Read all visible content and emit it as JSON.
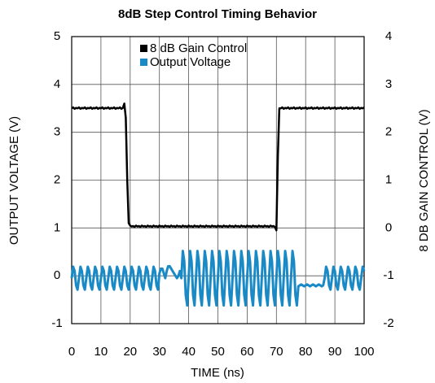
{
  "chart_data": {
    "type": "line",
    "title": "8dB Step Control Timing Behavior",
    "xlabel": "TIME (ns)",
    "ylabel": "OUTPUT VOLTAGE (V)",
    "y2label": "8 DB GAIN CONTROL (V)",
    "xlim": [
      0,
      100
    ],
    "xticks": [
      0,
      10,
      20,
      30,
      40,
      50,
      60,
      70,
      80,
      90,
      100
    ],
    "ylim": [
      -1,
      5
    ],
    "yticks": [
      -1,
      0,
      1,
      2,
      3,
      4,
      5
    ],
    "y2lim": [
      -2,
      4
    ],
    "y2ticks": [
      -2,
      -1,
      0,
      1,
      2,
      3,
      4
    ],
    "grid": true,
    "legend": "upper center",
    "x": [
      0,
      0.5,
      1,
      1.5,
      2,
      2.5,
      3,
      3.5,
      4,
      4.5,
      5,
      5.5,
      6,
      6.5,
      7,
      7.5,
      8,
      8.5,
      9,
      9.5,
      10,
      10.5,
      11,
      11.5,
      12,
      12.5,
      13,
      13.5,
      14,
      14.5,
      15,
      15.5,
      16,
      16.5,
      17,
      17.5,
      18,
      18.5,
      19,
      19.5,
      20,
      20.5,
      21,
      21.5,
      22,
      22.5,
      23,
      23.5,
      24,
      24.5,
      25,
      25.5,
      26,
      26.5,
      27,
      27.5,
      28,
      28.5,
      29,
      29.5,
      30,
      30.5,
      31,
      31.5,
      32,
      32.5,
      33,
      33.5,
      34,
      34.5,
      35,
      35.5,
      36,
      36.5,
      37,
      37.5,
      38,
      38.5,
      39,
      39.5,
      40,
      40.5,
      41,
      41.5,
      42,
      42.5,
      43,
      43.5,
      44,
      44.5,
      45,
      45.5,
      46,
      46.5,
      47,
      47.5,
      48,
      48.5,
      49,
      49.5,
      50,
      50.5,
      51,
      51.5,
      52,
      52.5,
      53,
      53.5,
      54,
      54.5,
      55,
      55.5,
      56,
      56.5,
      57,
      57.5,
      58,
      58.5,
      59,
      59.5,
      60,
      60.5,
      61,
      61.5,
      62,
      62.5,
      63,
      63.5,
      64,
      64.5,
      65,
      65.5,
      66,
      66.5,
      67,
      67.5,
      68,
      68.5,
      69,
      69.5,
      70,
      70.5,
      71,
      71.5,
      72,
      72.5,
      73,
      73.5,
      74,
      74.5,
      75,
      75.5,
      76,
      76.5,
      77,
      77.5,
      78,
      78.5,
      79,
      79.5,
      80,
      80.5,
      81,
      81.5,
      82,
      82.5,
      83,
      83.5,
      84,
      84.5,
      85,
      85.5,
      86,
      86.5,
      87,
      87.5,
      88,
      88.5,
      89,
      89.5,
      90,
      90.5,
      91,
      91.5,
      92,
      92.5,
      93,
      93.5,
      94,
      94.5,
      95,
      95.5,
      96,
      96.5,
      97,
      97.5,
      98,
      98.5,
      99,
      99.5,
      100
    ],
    "series": [
      {
        "name": "8 dB Gain Control",
        "color": "#000000",
        "axis": "y2",
        "values": [
          2.5,
          2.52,
          2.49,
          2.51,
          2.5,
          2.52,
          2.49,
          2.51,
          2.5,
          2.52,
          2.49,
          2.51,
          2.5,
          2.52,
          2.49,
          2.51,
          2.5,
          2.52,
          2.49,
          2.51,
          2.5,
          2.52,
          2.49,
          2.51,
          2.5,
          2.52,
          2.49,
          2.51,
          2.5,
          2.52,
          2.49,
          2.51,
          2.5,
          2.52,
          2.49,
          2.51,
          2.6,
          2.3,
          1.0,
          0.1,
          0.05,
          0.03,
          0.04,
          0.02,
          0.05,
          0.03,
          0.04,
          0.02,
          0.05,
          0.03,
          0.04,
          0.02,
          0.05,
          0.03,
          0.04,
          0.02,
          0.05,
          0.03,
          0.04,
          0.02,
          0.05,
          0.03,
          0.04,
          0.02,
          0.05,
          0.03,
          0.04,
          0.02,
          0.05,
          0.03,
          0.04,
          0.02,
          0.05,
          0.03,
          0.04,
          0.02,
          0.05,
          0.03,
          0.04,
          0.02,
          0.05,
          0.03,
          0.04,
          0.02,
          0.05,
          0.03,
          0.04,
          0.02,
          0.05,
          0.03,
          0.04,
          0.02,
          0.05,
          0.03,
          0.04,
          0.02,
          0.05,
          0.03,
          0.04,
          0.02,
          0.05,
          0.03,
          0.04,
          0.02,
          0.05,
          0.03,
          0.04,
          0.02,
          0.05,
          0.03,
          0.04,
          0.02,
          0.05,
          0.03,
          0.04,
          0.02,
          0.05,
          0.03,
          0.04,
          0.02,
          0.05,
          0.03,
          0.04,
          0.02,
          0.05,
          0.03,
          0.04,
          0.02,
          0.05,
          0.03,
          0.04,
          0.02,
          0.05,
          0.03,
          0.04,
          0.02,
          0.05,
          0.03,
          0.04,
          0.02,
          -0.05,
          1.5,
          2.5,
          2.5,
          2.52,
          2.49,
          2.51,
          2.5,
          2.52,
          2.49,
          2.51,
          2.5,
          2.52,
          2.49,
          2.51,
          2.5,
          2.52,
          2.49,
          2.51,
          2.5,
          2.52,
          2.49,
          2.51,
          2.5,
          2.52,
          2.49,
          2.51,
          2.5,
          2.52,
          2.49,
          2.51,
          2.5,
          2.52,
          2.49,
          2.51,
          2.5,
          2.52,
          2.49,
          2.51,
          2.5,
          2.52,
          2.49,
          2.51,
          2.5,
          2.52,
          2.49,
          2.51,
          2.5,
          2.52,
          2.49,
          2.51,
          2.5,
          2.52,
          2.49,
          2.51,
          2.5,
          2.52,
          2.49,
          2.51,
          2.5,
          2.52
        ]
      },
      {
        "name": "Output Voltage",
        "color": "#1a8ac6",
        "values": [
          -0.05,
          0.19,
          0.1,
          -0.2,
          -0.29,
          -0.05,
          0.19,
          0.1,
          -0.2,
          -0.29,
          -0.05,
          0.19,
          0.1,
          -0.2,
          -0.29,
          -0.05,
          0.19,
          0.1,
          -0.2,
          -0.29,
          -0.05,
          0.19,
          0.1,
          -0.2,
          -0.29,
          -0.05,
          0.19,
          0.1,
          -0.2,
          -0.29,
          -0.05,
          0.19,
          0.1,
          -0.2,
          -0.29,
          -0.05,
          0.19,
          0.1,
          -0.2,
          -0.29,
          -0.05,
          0.19,
          0.1,
          -0.2,
          -0.29,
          -0.05,
          0.19,
          0.1,
          -0.2,
          -0.29,
          -0.05,
          0.19,
          0.1,
          -0.2,
          -0.29,
          -0.05,
          0.19,
          0.1,
          -0.2,
          -0.29,
          0.05,
          0.15,
          0.15,
          0.05,
          -0.05,
          0.1,
          0.2,
          0.2,
          0.15,
          0.1,
          0.05,
          0.0,
          -0.05,
          0.0,
          0.1,
          -0.05,
          0.52,
          0.3,
          -0.4,
          -0.62,
          -0.05,
          0.52,
          0.3,
          -0.4,
          -0.62,
          -0.05,
          0.52,
          0.3,
          -0.4,
          -0.62,
          -0.05,
          0.52,
          0.3,
          -0.4,
          -0.62,
          -0.05,
          0.52,
          0.3,
          -0.4,
          -0.62,
          -0.05,
          0.52,
          0.3,
          -0.4,
          -0.62,
          -0.05,
          0.52,
          0.3,
          -0.4,
          -0.62,
          -0.05,
          0.52,
          0.3,
          -0.4,
          -0.62,
          -0.05,
          0.52,
          0.3,
          -0.4,
          -0.62,
          -0.05,
          0.52,
          0.3,
          -0.4,
          -0.62,
          -0.05,
          0.52,
          0.3,
          -0.4,
          -0.62,
          -0.05,
          0.52,
          0.3,
          -0.4,
          -0.62,
          -0.05,
          0.52,
          0.3,
          -0.4,
          -0.62,
          -0.05,
          0.52,
          0.3,
          -0.4,
          -0.62,
          -0.05,
          0.52,
          0.3,
          -0.4,
          -0.62,
          -0.05,
          0.52,
          0.3,
          -0.4,
          -0.62,
          -0.22,
          -0.2,
          -0.18,
          -0.2,
          -0.22,
          -0.2,
          -0.18,
          -0.2,
          -0.22,
          -0.2,
          -0.18,
          -0.2,
          -0.22,
          -0.2,
          -0.18,
          -0.2,
          -0.22,
          -0.2,
          -0.05,
          0.19,
          0.1,
          -0.2,
          -0.29,
          -0.05,
          0.19,
          0.1,
          -0.2,
          -0.29,
          -0.05,
          0.19,
          0.1,
          -0.2,
          -0.29,
          -0.05,
          0.19,
          0.1,
          -0.2,
          -0.29,
          -0.05,
          0.19,
          0.1,
          -0.2,
          -0.29,
          -0.05,
          0.19,
          0.1
        ]
      }
    ]
  }
}
